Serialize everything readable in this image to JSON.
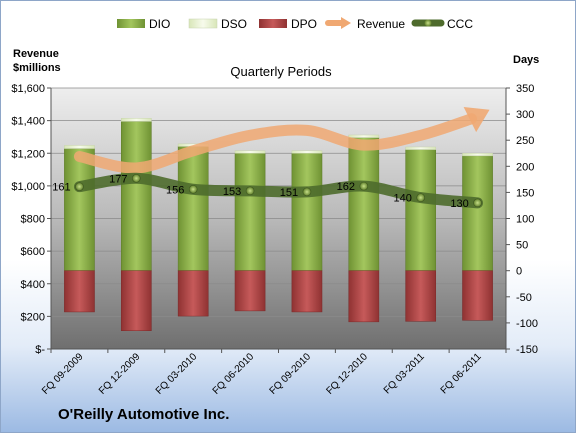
{
  "chart_data": {
    "type": "bar",
    "subtitle": "Quarterly Periods",
    "company": "O'Reilly Automotive Inc.",
    "left_axis_title": [
      "Revenue",
      "$millions"
    ],
    "right_axis_title": "Days",
    "categories": [
      "FQ 09-2009",
      "FQ 12-2009",
      "FQ 03-2010",
      "FQ 06-2010",
      "FQ 09-2010",
      "FQ 12-2010",
      "FQ 03-2011",
      "FQ 06-2011"
    ],
    "left_axis": {
      "range": [
        0,
        1600
      ],
      "ticks": [
        0,
        200,
        400,
        600,
        800,
        1000,
        1200,
        1400,
        1600
      ],
      "tick_labels": [
        "$-",
        "$200",
        "$400",
        "$600",
        "$800",
        "$1,000",
        "$1,200",
        "$1,400",
        "$1,600"
      ]
    },
    "right_axis": {
      "range": [
        -150,
        350
      ],
      "ticks": [
        -150,
        -100,
        -50,
        0,
        50,
        100,
        150,
        200,
        250,
        300,
        350
      ],
      "tick_labels": [
        "-150",
        "-100",
        "-50",
        "0",
        "50",
        "100",
        "150",
        "200",
        "250",
        "300",
        "350"
      ]
    },
    "series": [
      {
        "name": "DIO",
        "kind": "bar",
        "axis": "right",
        "color": "#8db04b",
        "values": [
          234,
          286,
          238,
          225,
          225,
          255,
          232,
          220
        ]
      },
      {
        "name": "DSO",
        "kind": "bar",
        "axis": "right",
        "color": "#eef5d8",
        "values": [
          6,
          6,
          5,
          5,
          5,
          5,
          5,
          5
        ]
      },
      {
        "name": "DPO",
        "kind": "bar",
        "axis": "right",
        "color": "#b84a4a",
        "values": [
          -79,
          -115,
          -87,
          -77,
          -79,
          -98,
          -97,
          -95
        ]
      },
      {
        "name": "Revenue",
        "kind": "line",
        "axis": "left",
        "color": "#f0a872",
        "values": [
          1180,
          1110,
          1215,
          1310,
          1340,
          1250,
          1310,
          1430
        ]
      },
      {
        "name": "CCC",
        "kind": "line",
        "axis": "right",
        "color": "#4e6b2c",
        "values": [
          161,
          177,
          156,
          153,
          151,
          162,
          140,
          130
        ]
      }
    ],
    "ccc_labels": [
      "161",
      "177",
      "156",
      "153",
      "151",
      "162",
      "140",
      "130"
    ],
    "grid": true,
    "legend_position": "top"
  }
}
